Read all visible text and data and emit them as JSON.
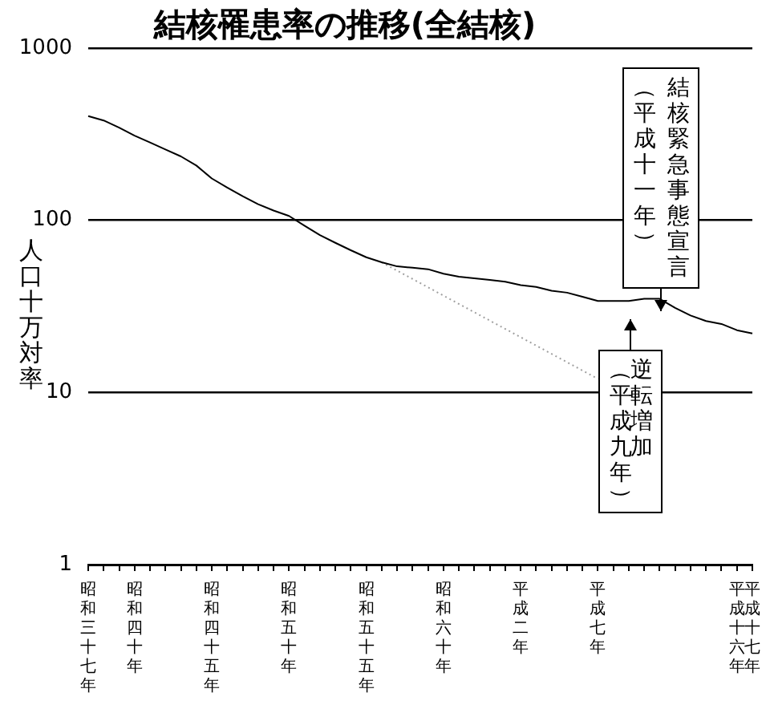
{
  "chart_data": {
    "type": "line",
    "title": "結核罹患率の推移(全結核)",
    "ylabel": "人口十万対率",
    "categories": [
      "昭和三十七年",
      null,
      null,
      "昭和四十年",
      null,
      null,
      null,
      null,
      "昭和四十五年",
      null,
      null,
      null,
      null,
      "昭和五十年",
      null,
      null,
      null,
      null,
      "昭和五十五年",
      null,
      null,
      null,
      null,
      "昭和六十年",
      null,
      null,
      null,
      null,
      "平成二年",
      null,
      null,
      null,
      null,
      "平成七年",
      null,
      null,
      null,
      null,
      null,
      null,
      null,
      null,
      "平成十六年",
      "平成十七年"
    ],
    "series": [
      {
        "color": "#000000",
        "line_style": "solid",
        "values": [
          403,
          380,
          345,
          310,
          283,
          258,
          235,
          208,
          175,
          155,
          138,
          124,
          114,
          106,
          93,
          82,
          74,
          67,
          61,
          57,
          54,
          53,
          52,
          49,
          47,
          46,
          45,
          44,
          42,
          41,
          39,
          38,
          36,
          34,
          34,
          34,
          35,
          35,
          31,
          28,
          26,
          25,
          23,
          22
        ]
      },
      {
        "color": "#a0a0a0",
        "line_style": "dotted",
        "values": [
          null,
          null,
          null,
          null,
          null,
          null,
          null,
          null,
          null,
          null,
          null,
          null,
          null,
          null,
          null,
          null,
          null,
          null,
          null,
          57,
          null,
          null,
          null,
          null,
          null,
          null,
          null,
          null,
          null,
          null,
          null,
          null,
          null,
          12,
          null,
          null,
          null,
          null,
          null,
          null,
          null,
          null,
          null,
          null
        ]
      }
    ],
    "ylim": [
      1,
      1000
    ],
    "yticks": [
      1,
      10,
      100,
      1000
    ],
    "log": "y",
    "grid": "y",
    "legend": false,
    "marker": "none",
    "annotations": [
      "結核緊急事態宣言",
      "（平成十一年）",
      "逆転増加",
      "（平成九年）"
    ]
  }
}
